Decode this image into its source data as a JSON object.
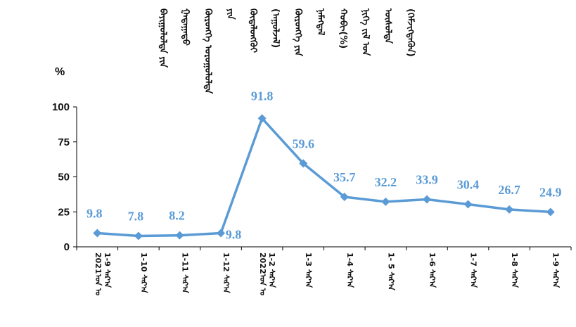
{
  "chart_data": {
    "type": "line",
    "title_lines": [
      "ᠪᠠᠶᠢᠭᠤᠯᠤᠯᠲᠠ ᠶᠢᠨ",
      "ᠭᠠᠳᠠᠭᠠᠳᠤ",
      "ᠬᠥᠷᠥᠩᠭᠡ ᠤᠷᠤᠭᠤᠯᠤᠯᠲᠠ",
      "ᠶᠢᠨ",
      "ᠬᠥᠳᠡᠯᠦᠩᠭᠦᠢ",
      "(ᠠᠭᠤᠯᠵᠠᠯ)",
      "ᠬᠥᠷᠥᠩᠭᠡ ᠶᠢᠨ",
      "ᠨᠡᠮᠡᠭᠳᠡᠯ",
      "ᠬᠤᠪᠢ(%)",
      "ᠨᠢᠭᠡ ᠵᠢᠯ ᠤᠨ",
      "ᠥᠰᠦᠯᠲᠡ",
      "(ᠬᠡᠮᠵᠢᠭᠳᠡᠬᠦᠨ)"
    ],
    "ylabel": "%",
    "ylim": [
      0,
      100
    ],
    "yticks": [
      0,
      25,
      50,
      75,
      100
    ],
    "categories": [
      {
        "line1": "2021ᠣᠨ ᠤ",
        "line2": "1-9 ᠰᠠᠷ᠎ᠠ"
      },
      {
        "line1": "",
        "line2": "1-10 ᠰᠠᠷ᠎ᠠ"
      },
      {
        "line1": "",
        "line2": "1-11 ᠰᠠᠷ᠎ᠠ"
      },
      {
        "line1": "",
        "line2": "1-12 ᠰᠠᠷ᠎ᠠ"
      },
      {
        "line1": "2022ᠣᠨ ᠤ",
        "line2": "1-2 ᠰᠠᠷ᠎ᠠ"
      },
      {
        "line1": "",
        "line2": "1-3 ᠰᠠᠷ᠎ᠠ"
      },
      {
        "line1": "",
        "line2": "1-4 ᠰᠠᠷ᠎ᠠ"
      },
      {
        "line1": "",
        "line2": "1- 5 ᠰᠠᠷ᠎ᠠ"
      },
      {
        "line1": "",
        "line2": "1-6 ᠰᠠᠷ᠎ᠠ"
      },
      {
        "line1": "",
        "line2": "1-7 ᠰᠠᠷ᠎ᠠ"
      },
      {
        "line1": "",
        "line2": "1-8 ᠰᠠᠷ᠎ᠠ"
      },
      {
        "line1": "",
        "line2": "1-9 ᠰᠠᠷ᠎ᠠ"
      }
    ],
    "values": [
      9.8,
      7.8,
      8.2,
      9.8,
      91.8,
      59.6,
      35.7,
      32.2,
      33.9,
      30.4,
      26.7,
      24.9
    ],
    "data_labels": [
      "9.8",
      "7.8",
      "8.2",
      "9.8",
      "91.8",
      "59.6",
      "35.7",
      "32.2",
      "33.9",
      "30.4",
      "26.7",
      "24.9"
    ],
    "line_color": "#5B9BD5",
    "label_color": "#5B9BD5",
    "marker": "diamond",
    "grid": false,
    "legend": "none"
  }
}
